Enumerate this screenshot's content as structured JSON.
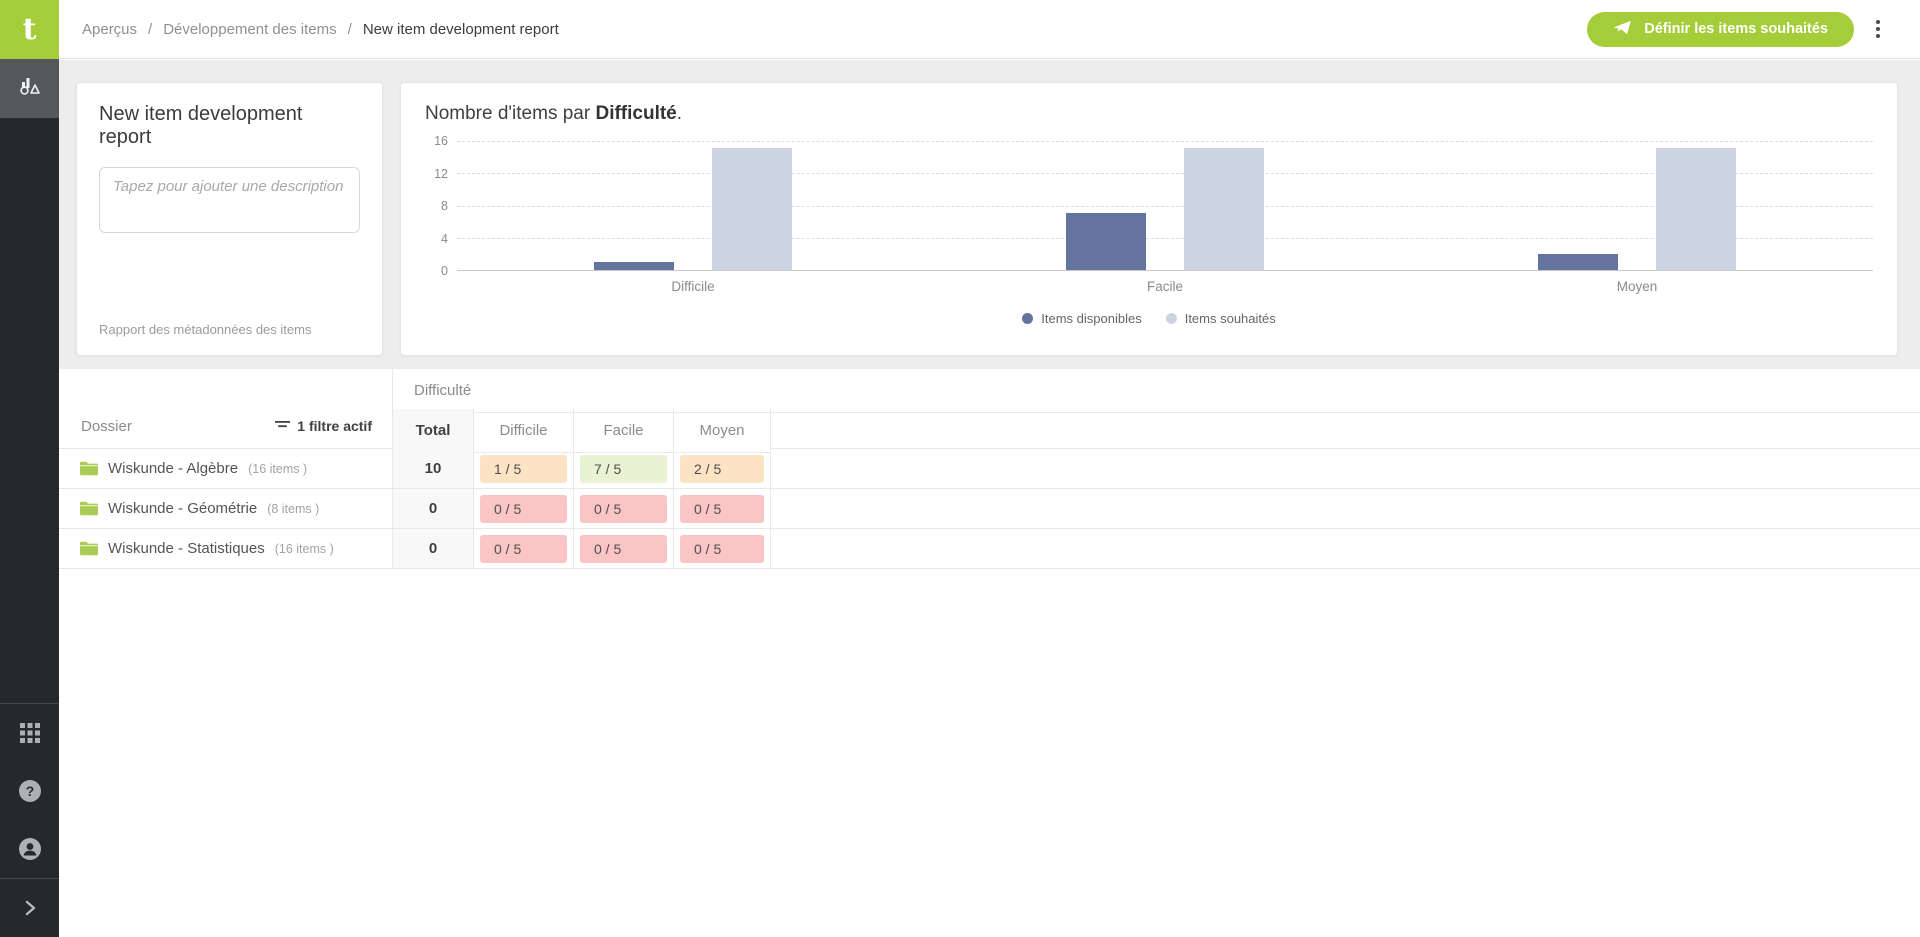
{
  "brand": {
    "logo_letter": "t",
    "green": "#a5cd39"
  },
  "sidebar": {
    "active_item": "item-development-reports",
    "bottom_items": [
      "apps-grid",
      "help",
      "account",
      "expand"
    ]
  },
  "header": {
    "breadcrumb": [
      "Aperçus",
      "Développement des items",
      "New item development report"
    ],
    "action_button": "Définir les items souhaités"
  },
  "report_card": {
    "title": "New item development report",
    "description_placeholder": "Tapez pour ajouter une description",
    "footer": "Rapport des métadonnées des items"
  },
  "chart_data": {
    "type": "bar",
    "title_prefix": "Nombre d'items par ",
    "title_bold": "Difficulté",
    "title_suffix": ".",
    "categories": [
      "Difficile",
      "Facile",
      "Moyen"
    ],
    "series": [
      {
        "name": "Items disponibles",
        "color": "#65749e",
        "values": [
          1,
          7,
          2
        ]
      },
      {
        "name": "Items souhaités",
        "color": "#ccd3e2",
        "values": [
          15,
          15,
          15
        ]
      }
    ],
    "ylim": [
      0,
      16
    ],
    "yticks": [
      16,
      12,
      8,
      4,
      0
    ],
    "grid": "horizontal-dashed",
    "legend_position": "bottom"
  },
  "table": {
    "dossier_header": "Dossier",
    "filter_label": "1 filtre actif",
    "group_header": "Difficulté",
    "columns": [
      "Total",
      "Difficile",
      "Facile",
      "Moyen"
    ],
    "status_colors": {
      "warn": "#fce3c4",
      "ok": "#e9f2d2",
      "bad": "#fbc5c6"
    },
    "rows": [
      {
        "name": "Wiskunde - Algèbre",
        "count": "(16 items )",
        "total": "10",
        "cells": [
          {
            "text": "1 / 5",
            "status": "warn"
          },
          {
            "text": "7 / 5",
            "status": "ok"
          },
          {
            "text": "2 / 5",
            "status": "warn"
          }
        ]
      },
      {
        "name": "Wiskunde - Géométrie",
        "count": "(8 items )",
        "total": "0",
        "cells": [
          {
            "text": "0 / 5",
            "status": "bad"
          },
          {
            "text": "0 / 5",
            "status": "bad"
          },
          {
            "text": "0 / 5",
            "status": "bad"
          }
        ]
      },
      {
        "name": "Wiskunde - Statistiques",
        "count": "(16 items )",
        "total": "0",
        "cells": [
          {
            "text": "0 / 5",
            "status": "bad"
          },
          {
            "text": "0 / 5",
            "status": "bad"
          },
          {
            "text": "0 / 5",
            "status": "bad"
          }
        ]
      }
    ]
  }
}
